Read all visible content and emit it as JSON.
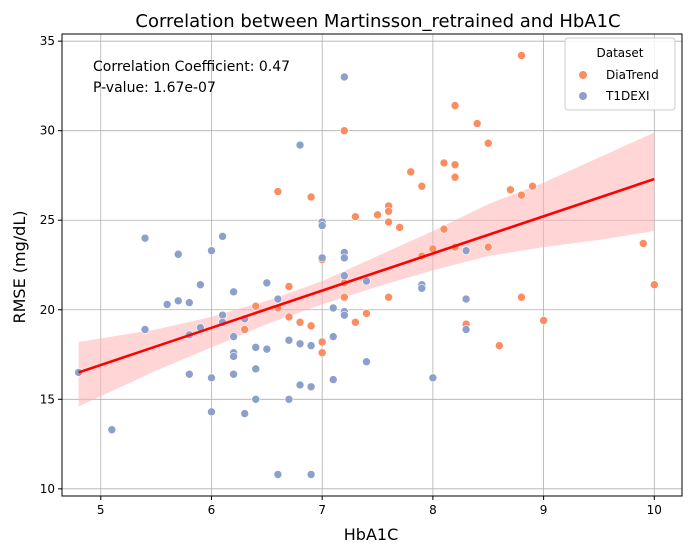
{
  "chart_data": {
    "type": "scatter",
    "title": "Correlation between Martinsson_retrained and HbA1C",
    "xlabel": "HbA1C",
    "ylabel": "RMSE (mg/dL)",
    "xlim": [
      4.65,
      10.25
    ],
    "ylim": [
      9.6,
      35.4
    ],
    "x_ticks": [
      5,
      6,
      7,
      8,
      9,
      10
    ],
    "y_ticks": [
      10,
      15,
      20,
      25,
      30,
      35
    ],
    "grid": true,
    "legend": {
      "title": "Dataset",
      "placement": "top-right"
    },
    "annotations": [
      "Correlation Coefficient: 0.47",
      "P-value: 1.67e-07"
    ],
    "regression": {
      "x": [
        4.8,
        10.0
      ],
      "y": [
        16.5,
        27.3
      ],
      "color": "#ff0000",
      "band_color": "#ffb3b3"
    },
    "confidence_band": {
      "x": [
        4.8,
        5.5,
        6.0,
        6.5,
        7.0,
        7.5,
        8.0,
        8.5,
        9.0,
        9.5,
        10.0
      ],
      "lower": [
        14.6,
        16.6,
        17.9,
        19.2,
        20.3,
        21.3,
        22.2,
        23.0,
        23.5,
        23.9,
        24.4
      ],
      "upper": [
        18.2,
        18.9,
        19.6,
        20.5,
        21.6,
        23.0,
        24.4,
        25.9,
        27.1,
        28.5,
        29.9
      ]
    },
    "series": [
      {
        "name": "DiaTrend",
        "color": "#fc8d62",
        "points": [
          [
            6.3,
            18.9
          ],
          [
            6.4,
            20.2
          ],
          [
            6.6,
            26.6
          ],
          [
            6.6,
            20.1
          ],
          [
            6.7,
            21.3
          ],
          [
            6.7,
            19.6
          ],
          [
            6.8,
            19.3
          ],
          [
            6.9,
            26.3
          ],
          [
            6.9,
            19.1
          ],
          [
            7.0,
            22.8
          ],
          [
            7.0,
            18.2
          ],
          [
            7.0,
            17.6
          ],
          [
            7.2,
            30.0
          ],
          [
            7.2,
            21.5
          ],
          [
            7.2,
            20.7
          ],
          [
            7.3,
            25.2
          ],
          [
            7.3,
            19.3
          ],
          [
            7.4,
            19.8
          ],
          [
            7.5,
            25.3
          ],
          [
            7.6,
            25.8
          ],
          [
            7.6,
            25.5
          ],
          [
            7.6,
            24.9
          ],
          [
            7.6,
            20.7
          ],
          [
            7.7,
            24.6
          ],
          [
            7.8,
            27.7
          ],
          [
            7.9,
            26.9
          ],
          [
            7.9,
            23.0
          ],
          [
            8.0,
            23.4
          ],
          [
            8.1,
            28.2
          ],
          [
            8.1,
            24.5
          ],
          [
            8.2,
            31.4
          ],
          [
            8.2,
            28.1
          ],
          [
            8.2,
            27.4
          ],
          [
            8.2,
            23.5
          ],
          [
            8.3,
            19.2
          ],
          [
            8.4,
            30.4
          ],
          [
            8.5,
            29.3
          ],
          [
            8.5,
            23.5
          ],
          [
            8.6,
            18.0
          ],
          [
            8.7,
            26.7
          ],
          [
            8.8,
            34.2
          ],
          [
            8.8,
            26.4
          ],
          [
            8.8,
            20.7
          ],
          [
            8.9,
            26.9
          ],
          [
            9.0,
            19.4
          ],
          [
            9.9,
            23.7
          ],
          [
            10.0,
            21.4
          ]
        ]
      },
      {
        "name": "T1DEXI",
        "color": "#8da0cb",
        "points": [
          [
            4.8,
            16.5
          ],
          [
            5.1,
            13.3
          ],
          [
            5.4,
            24.0
          ],
          [
            5.4,
            18.9
          ],
          [
            5.6,
            20.3
          ],
          [
            5.7,
            23.1
          ],
          [
            5.7,
            20.5
          ],
          [
            5.8,
            20.4
          ],
          [
            5.8,
            18.6
          ],
          [
            5.8,
            16.4
          ],
          [
            5.9,
            21.4
          ],
          [
            5.9,
            19.0
          ],
          [
            6.0,
            23.3
          ],
          [
            6.0,
            16.2
          ],
          [
            6.0,
            14.3
          ],
          [
            6.1,
            24.1
          ],
          [
            6.1,
            19.7
          ],
          [
            6.1,
            19.3
          ],
          [
            6.2,
            21.0
          ],
          [
            6.2,
            18.5
          ],
          [
            6.2,
            17.6
          ],
          [
            6.2,
            17.4
          ],
          [
            6.2,
            16.4
          ],
          [
            6.3,
            19.5
          ],
          [
            6.3,
            14.2
          ],
          [
            6.4,
            17.9
          ],
          [
            6.4,
            16.7
          ],
          [
            6.4,
            15.0
          ],
          [
            6.5,
            21.5
          ],
          [
            6.5,
            17.8
          ],
          [
            6.6,
            20.6
          ],
          [
            6.6,
            10.8
          ],
          [
            6.7,
            18.3
          ],
          [
            6.7,
            15.0
          ],
          [
            6.8,
            29.2
          ],
          [
            6.8,
            18.1
          ],
          [
            6.8,
            15.8
          ],
          [
            6.9,
            18.0
          ],
          [
            6.9,
            15.7
          ],
          [
            6.9,
            10.8
          ],
          [
            7.0,
            24.9
          ],
          [
            7.0,
            24.7
          ],
          [
            7.0,
            22.9
          ],
          [
            7.1,
            20.1
          ],
          [
            7.1,
            18.5
          ],
          [
            7.1,
            16.1
          ],
          [
            7.2,
            33.0
          ],
          [
            7.2,
            23.2
          ],
          [
            7.2,
            22.9
          ],
          [
            7.2,
            21.9
          ],
          [
            7.2,
            19.9
          ],
          [
            7.2,
            19.7
          ],
          [
            7.4,
            21.6
          ],
          [
            7.4,
            17.1
          ],
          [
            7.9,
            21.4
          ],
          [
            7.9,
            21.2
          ],
          [
            8.0,
            16.2
          ],
          [
            8.3,
            23.3
          ],
          [
            8.3,
            20.6
          ],
          [
            8.3,
            18.9
          ]
        ]
      }
    ]
  }
}
